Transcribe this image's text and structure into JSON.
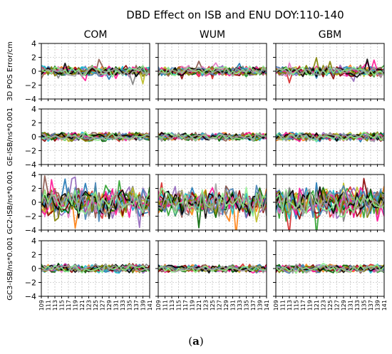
{
  "figure": {
    "title": "DBD Effect on ISB and ENU DOY:110-140",
    "caption_open": "(",
    "caption_label": "a",
    "caption_close": ")"
  },
  "chart_data": {
    "type": "line",
    "layout": "grid of 4 rows x 3 columns of line panels, shared x axis",
    "columns": [
      "COM",
      "WUM",
      "GBM"
    ],
    "row_ylabels": [
      "3D POS Error/cm",
      "GE-ISB/ns*0.001",
      "GC2-ISB/ns*0.001",
      "GC3-ISB/ns*0.001"
    ],
    "x": [
      109,
      110,
      111,
      112,
      113,
      114,
      115,
      116,
      117,
      118,
      119,
      120,
      121,
      122,
      123,
      124,
      125,
      126,
      127,
      128,
      129,
      130,
      131,
      132,
      133,
      134,
      135,
      136,
      137,
      138,
      139,
      140,
      141
    ],
    "xtick_labels": [
      "109",
      "111",
      "113",
      "115",
      "117",
      "119",
      "121",
      "123",
      "125",
      "127",
      "129",
      "131",
      "133",
      "135",
      "137",
      "139",
      "141"
    ],
    "xlim": [
      109,
      141
    ],
    "ylim": [
      -4,
      4
    ],
    "ytick_labels": [
      "4",
      "2",
      "0",
      "−2",
      "−4"
    ],
    "grid": true,
    "grid_style": "dashed",
    "series_colors": [
      "#1f77b4",
      "#ff7f0e",
      "#2ca02c",
      "#d62728",
      "#9467bd",
      "#8c564b",
      "#e377c2",
      "#7f7f7f",
      "#bcbd22",
      "#17becf",
      "#8b0000",
      "#006400",
      "#ff1493",
      "#4682b4",
      "#808000",
      "#000000",
      "#90ee90",
      "#a0a0a0"
    ],
    "panel_amplitudes_row": [
      0.6,
      0.5,
      1.7,
      0.5
    ],
    "panel_amplitude_column_factor": [
      1.0,
      0.9,
      1.0
    ],
    "data_note_values": "dense noisy multi-series lines oscillating about 0 (values shown only graphically)"
  }
}
